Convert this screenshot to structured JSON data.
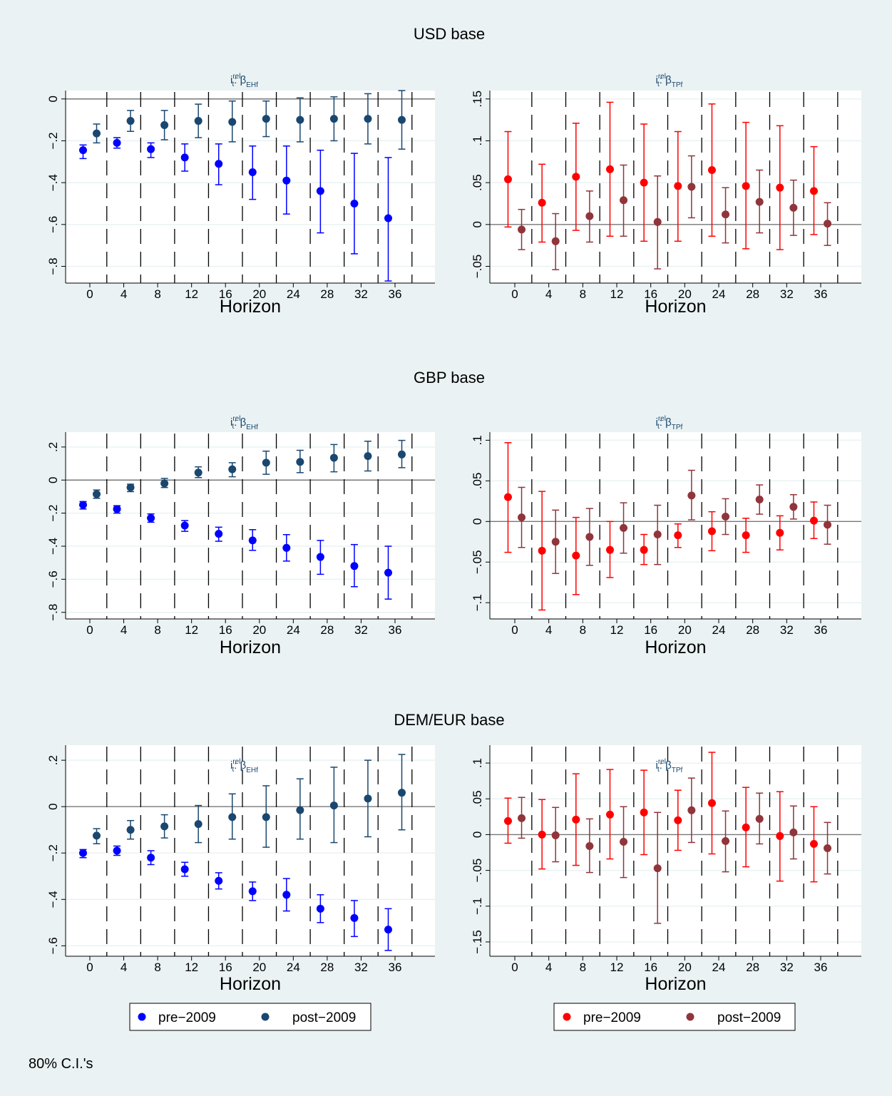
{
  "footnote": "80% C.I.'s",
  "legends": {
    "left": {
      "items": [
        {
          "label": "pre−2009",
          "color": "#0000ff"
        },
        {
          "label": "post−2009",
          "color": "#1a476f"
        }
      ]
    },
    "right": {
      "items": [
        {
          "label": "pre−2009",
          "color": "#ff0000"
        },
        {
          "label": "post−2009",
          "color": "#90353b"
        }
      ]
    }
  },
  "chart_data": [
    {
      "type": "scatter",
      "block": "USD base",
      "panel": "left",
      "title_base": "i",
      "title_sup": "rel",
      "title_sub": "t",
      "title_sep": ": β",
      "title_beta_sub": "EHf",
      "xlabel": "Horizon",
      "x_ticks": [
        0,
        4,
        8,
        12,
        16,
        20,
        24,
        28,
        32,
        36
      ],
      "ylim": [
        -0.88,
        0.04
      ],
      "y_ticks": [
        {
          "v": 0,
          "label": "0"
        },
        {
          "v": -0.2,
          "label": "−.2"
        },
        {
          "v": -0.4,
          "label": "−.4"
        },
        {
          "v": -0.6,
          "label": "−.6"
        },
        {
          "v": -0.8,
          "label": "−.8"
        }
      ],
      "series": [
        {
          "name": "pre−2009",
          "color": "#0000ff",
          "offset": -0.8,
          "x": [
            0,
            4,
            8,
            12,
            16,
            20,
            24,
            28,
            32,
            36
          ],
          "values": [
            -0.245,
            -0.21,
            -0.24,
            -0.28,
            -0.31,
            -0.35,
            -0.39,
            -0.44,
            -0.5,
            -0.57
          ],
          "lower": [
            -0.285,
            -0.235,
            -0.28,
            -0.345,
            -0.41,
            -0.48,
            -0.55,
            -0.64,
            -0.74,
            -0.87
          ],
          "upper": [
            -0.22,
            -0.185,
            -0.21,
            -0.215,
            -0.215,
            -0.225,
            -0.225,
            -0.245,
            -0.26,
            -0.28
          ]
        },
        {
          "name": "post−2009",
          "color": "#1a476f",
          "offset": 0.8,
          "x": [
            0,
            4,
            8,
            12,
            16,
            20,
            24,
            28,
            32,
            36
          ],
          "values": [
            -0.165,
            -0.105,
            -0.125,
            -0.105,
            -0.11,
            -0.095,
            -0.1,
            -0.095,
            -0.095,
            -0.1
          ],
          "lower": [
            -0.21,
            -0.155,
            -0.195,
            -0.185,
            -0.205,
            -0.18,
            -0.205,
            -0.2,
            -0.215,
            -0.24
          ],
          "upper": [
            -0.12,
            -0.055,
            -0.055,
            -0.025,
            -0.01,
            -0.01,
            0.005,
            0.01,
            0.025,
            0.04
          ]
        }
      ]
    },
    {
      "type": "scatter",
      "block": "USD base",
      "panel": "right",
      "title_base": "i",
      "title_sup": "rel",
      "title_sub": "t",
      "title_sep": ": β",
      "title_beta_sub": "TPf",
      "xlabel": "Horizon",
      "x_ticks": [
        0,
        4,
        8,
        12,
        16,
        20,
        24,
        28,
        32,
        36
      ],
      "ylim": [
        -0.07,
        0.16
      ],
      "y_ticks": [
        {
          "v": 0.15,
          "label": ".15"
        },
        {
          "v": 0.1,
          "label": ".1"
        },
        {
          "v": 0.05,
          "label": ".05"
        },
        {
          "v": 0,
          "label": "0"
        },
        {
          "v": -0.05,
          "label": "−.05"
        }
      ],
      "series": [
        {
          "name": "pre−2009",
          "color": "#ff0000",
          "offset": -0.8,
          "x": [
            0,
            4,
            8,
            12,
            16,
            20,
            24,
            28,
            32,
            36
          ],
          "values": [
            0.054,
            0.026,
            0.057,
            0.066,
            0.05,
            0.046,
            0.065,
            0.046,
            0.044,
            0.04
          ],
          "lower": [
            -0.003,
            -0.021,
            -0.007,
            -0.014,
            -0.02,
            -0.02,
            -0.014,
            -0.029,
            -0.03,
            -0.012
          ],
          "upper": [
            0.111,
            0.072,
            0.121,
            0.146,
            0.12,
            0.111,
            0.144,
            0.122,
            0.118,
            0.093
          ]
        },
        {
          "name": "post−2009",
          "color": "#90353b",
          "offset": 0.8,
          "x": [
            0,
            4,
            8,
            12,
            16,
            20,
            24,
            28,
            32,
            36
          ],
          "values": [
            -0.006,
            -0.02,
            0.01,
            0.029,
            0.003,
            0.045,
            0.012,
            0.027,
            0.02,
            0.001
          ],
          "lower": [
            -0.03,
            -0.054,
            -0.021,
            -0.014,
            -0.053,
            0.008,
            -0.022,
            -0.01,
            -0.013,
            -0.025
          ],
          "upper": [
            0.018,
            0.013,
            0.04,
            0.071,
            0.058,
            0.082,
            0.044,
            0.065,
            0.053,
            0.026
          ]
        }
      ]
    },
    {
      "type": "scatter",
      "block": "GBP base",
      "panel": "left",
      "title_base": "i",
      "title_sup": "rel",
      "title_sub": "t",
      "title_sep": ": β",
      "title_beta_sub": "EHf",
      "xlabel": "Horizon",
      "x_ticks": [
        0,
        4,
        8,
        12,
        16,
        20,
        24,
        28,
        32,
        36
      ],
      "ylim": [
        -0.84,
        0.29
      ],
      "y_ticks": [
        {
          "v": 0.2,
          "label": ".2"
        },
        {
          "v": 0,
          "label": "0"
        },
        {
          "v": -0.2,
          "label": "−.2"
        },
        {
          "v": -0.4,
          "label": "−.4"
        },
        {
          "v": -0.6,
          "label": "−.6"
        },
        {
          "v": -0.8,
          "label": "−.8"
        }
      ],
      "series": [
        {
          "name": "pre−2009",
          "color": "#0000ff",
          "offset": -0.8,
          "x": [
            0,
            4,
            8,
            12,
            16,
            20,
            24,
            28,
            32,
            36
          ],
          "values": [
            -0.15,
            -0.175,
            -0.23,
            -0.275,
            -0.325,
            -0.365,
            -0.41,
            -0.465,
            -0.52,
            -0.56
          ],
          "lower": [
            -0.175,
            -0.2,
            -0.255,
            -0.31,
            -0.37,
            -0.425,
            -0.49,
            -0.57,
            -0.645,
            -0.72
          ],
          "upper": [
            -0.13,
            -0.155,
            -0.205,
            -0.245,
            -0.285,
            -0.3,
            -0.33,
            -0.365,
            -0.39,
            -0.4
          ]
        },
        {
          "name": "post−2009",
          "color": "#1a476f",
          "offset": 0.8,
          "x": [
            0,
            4,
            8,
            12,
            16,
            20,
            24,
            28,
            32,
            36
          ],
          "values": [
            -0.085,
            -0.045,
            -0.02,
            0.045,
            0.065,
            0.105,
            0.11,
            0.135,
            0.145,
            0.155
          ],
          "lower": [
            -0.11,
            -0.07,
            -0.045,
            0.015,
            0.02,
            0.035,
            0.045,
            0.05,
            0.055,
            0.075
          ],
          "upper": [
            -0.06,
            -0.025,
            0.01,
            0.08,
            0.105,
            0.175,
            0.18,
            0.215,
            0.235,
            0.24
          ]
        }
      ]
    },
    {
      "type": "scatter",
      "block": "GBP base",
      "panel": "right",
      "title_base": "i",
      "title_sup": "rel",
      "title_sub": "t",
      "title_sep": ": β",
      "title_beta_sub": "TPf",
      "xlabel": "Horizon",
      "x_ticks": [
        0,
        4,
        8,
        12,
        16,
        20,
        24,
        28,
        32,
        36
      ],
      "ylim": [
        -0.12,
        0.11
      ],
      "y_ticks": [
        {
          "v": 0.1,
          "label": ".1"
        },
        {
          "v": 0.05,
          "label": ".05"
        },
        {
          "v": 0,
          "label": "0"
        },
        {
          "v": -0.05,
          "label": "−.05"
        },
        {
          "v": -0.1,
          "label": "−.1"
        }
      ],
      "series": [
        {
          "name": "pre−2009",
          "color": "#ff0000",
          "offset": -0.8,
          "x": [
            0,
            4,
            8,
            12,
            16,
            20,
            24,
            28,
            32,
            36
          ],
          "values": [
            0.03,
            -0.036,
            -0.042,
            -0.035,
            -0.035,
            -0.017,
            -0.012,
            -0.017,
            -0.014,
            0.001
          ],
          "lower": [
            -0.038,
            -0.109,
            -0.09,
            -0.069,
            -0.053,
            -0.032,
            -0.036,
            -0.038,
            -0.035,
            -0.021
          ],
          "upper": [
            0.097,
            0.037,
            0.005,
            0.0,
            -0.016,
            -0.003,
            0.012,
            0.004,
            0.007,
            0.024
          ]
        },
        {
          "name": "post−2009",
          "color": "#90353b",
          "offset": 0.8,
          "x": [
            0,
            4,
            8,
            12,
            16,
            20,
            24,
            28,
            32,
            36
          ],
          "values": [
            0.005,
            -0.025,
            -0.019,
            -0.008,
            -0.016,
            0.032,
            0.006,
            0.027,
            0.018,
            -0.004
          ],
          "lower": [
            -0.032,
            -0.064,
            -0.054,
            -0.039,
            -0.053,
            0.002,
            -0.016,
            0.009,
            0.003,
            -0.028
          ],
          "upper": [
            0.042,
            0.014,
            0.016,
            0.023,
            0.02,
            0.063,
            0.028,
            0.045,
            0.033,
            0.02
          ]
        }
      ]
    },
    {
      "type": "scatter",
      "block": "DEM/EUR base",
      "panel": "left",
      "title_base": "i",
      "title_sup": "rel",
      "title_sub": "t",
      "title_sep": ": β",
      "title_beta_sub": "EHf",
      "xlabel": "Horizon",
      "x_ticks": [
        0,
        4,
        8,
        12,
        16,
        20,
        24,
        28,
        32,
        36
      ],
      "ylim": [
        -0.645,
        0.265
      ],
      "y_ticks": [
        {
          "v": 0.2,
          "label": ".2"
        },
        {
          "v": 0,
          "label": "0"
        },
        {
          "v": -0.2,
          "label": "−.2"
        },
        {
          "v": -0.4,
          "label": "−.4"
        },
        {
          "v": -0.6,
          "label": "−.6"
        }
      ],
      "series": [
        {
          "name": "pre−2009",
          "color": "#0000ff",
          "offset": -0.8,
          "x": [
            0,
            4,
            8,
            12,
            16,
            20,
            24,
            28,
            32,
            36
          ],
          "values": [
            -0.2,
            -0.19,
            -0.22,
            -0.27,
            -0.32,
            -0.365,
            -0.38,
            -0.44,
            -0.48,
            -0.53
          ],
          "lower": [
            -0.22,
            -0.21,
            -0.25,
            -0.3,
            -0.355,
            -0.405,
            -0.45,
            -0.5,
            -0.56,
            -0.62
          ],
          "upper": [
            -0.185,
            -0.17,
            -0.19,
            -0.24,
            -0.285,
            -0.325,
            -0.31,
            -0.38,
            -0.405,
            -0.44
          ]
        },
        {
          "name": "post−2009",
          "color": "#1a476f",
          "offset": 0.8,
          "x": [
            0,
            4,
            8,
            12,
            16,
            20,
            24,
            28,
            32,
            36
          ],
          "values": [
            -0.125,
            -0.1,
            -0.085,
            -0.075,
            -0.045,
            -0.045,
            -0.015,
            0.005,
            0.035,
            0.06
          ],
          "lower": [
            -0.16,
            -0.14,
            -0.135,
            -0.155,
            -0.14,
            -0.175,
            -0.14,
            -0.155,
            -0.13,
            -0.1
          ],
          "upper": [
            -0.095,
            -0.06,
            -0.035,
            0.005,
            0.055,
            0.09,
            0.12,
            0.17,
            0.2,
            0.225
          ]
        }
      ]
    },
    {
      "type": "scatter",
      "block": "DEM/EUR base",
      "panel": "right",
      "title_base": "i",
      "title_sup": "rel",
      "title_sub": "t",
      "title_sep": ": β",
      "title_beta_sub": "TPf",
      "xlabel": "Horizon",
      "x_ticks": [
        0,
        4,
        8,
        12,
        16,
        20,
        24,
        28,
        32,
        36
      ],
      "ylim": [
        -0.17,
        0.125
      ],
      "y_ticks": [
        {
          "v": 0.1,
          "label": ".1"
        },
        {
          "v": 0.05,
          "label": ".05"
        },
        {
          "v": 0,
          "label": "0"
        },
        {
          "v": -0.05,
          "label": "−.05"
        },
        {
          "v": -0.1,
          "label": "−.1"
        },
        {
          "v": -0.15,
          "label": "−.15"
        }
      ],
      "series": [
        {
          "name": "pre−2009",
          "color": "#ff0000",
          "offset": -0.8,
          "x": [
            0,
            4,
            8,
            12,
            16,
            20,
            24,
            28,
            32,
            36
          ],
          "values": [
            0.019,
            0.0,
            0.021,
            0.028,
            0.031,
            0.02,
            0.044,
            0.01,
            -0.002,
            -0.013
          ],
          "lower": [
            -0.012,
            -0.048,
            -0.043,
            -0.034,
            -0.028,
            -0.022,
            -0.027,
            -0.045,
            -0.065,
            -0.066
          ],
          "upper": [
            0.051,
            0.049,
            0.085,
            0.091,
            0.09,
            0.062,
            0.115,
            0.066,
            0.06,
            0.039
          ]
        },
        {
          "name": "post−2009",
          "color": "#90353b",
          "offset": 0.8,
          "x": [
            0,
            4,
            8,
            12,
            16,
            20,
            24,
            28,
            32,
            36
          ],
          "values": [
            0.023,
            -0.001,
            -0.016,
            -0.01,
            -0.047,
            0.034,
            -0.009,
            0.022,
            0.003,
            -0.019
          ],
          "lower": [
            -0.005,
            -0.038,
            -0.053,
            -0.06,
            -0.124,
            -0.011,
            -0.052,
            -0.013,
            -0.034,
            -0.055
          ],
          "upper": [
            0.052,
            0.038,
            0.022,
            0.039,
            0.031,
            0.079,
            0.033,
            0.058,
            0.04,
            0.017
          ]
        }
      ]
    }
  ]
}
